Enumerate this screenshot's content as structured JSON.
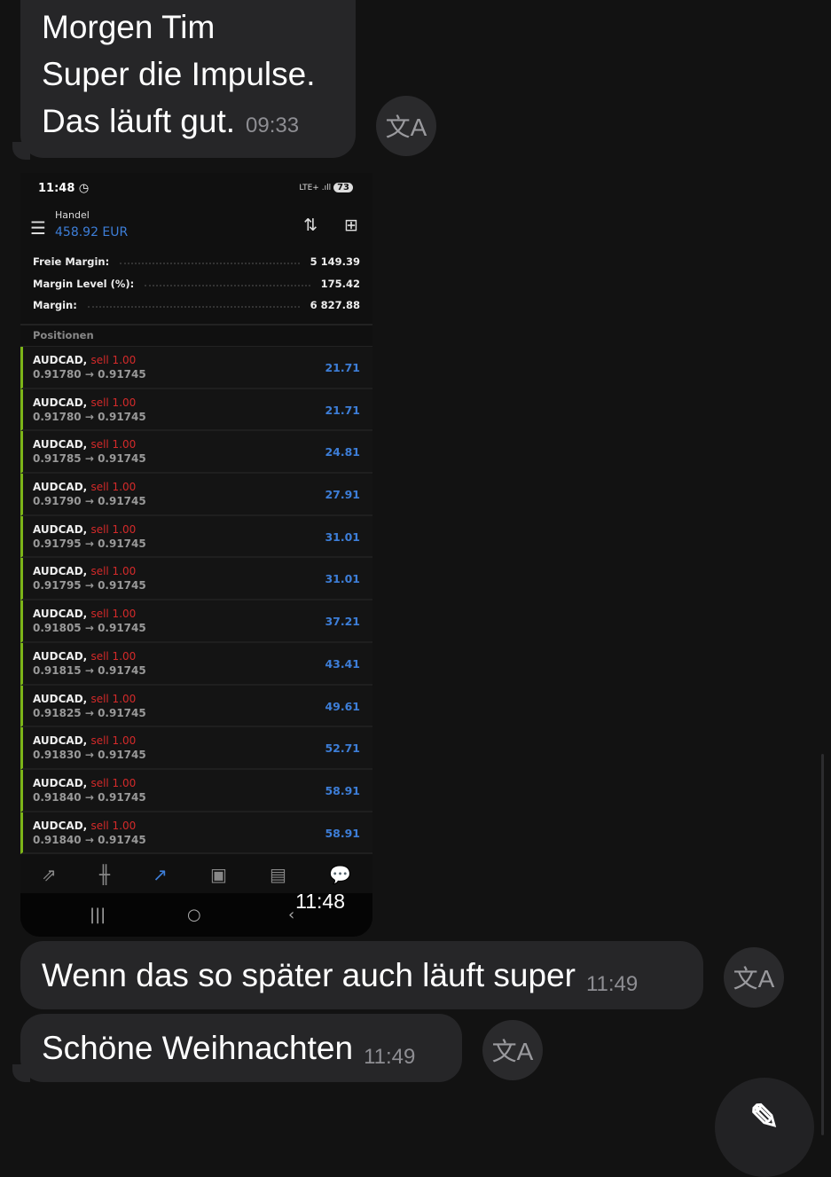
{
  "messages": [
    {
      "lines": [
        "Morgen Tim",
        "Super die Impulse.",
        "Das läuft gut."
      ],
      "time": "09:33"
    },
    {
      "text": "Wenn das so später auch läuft super",
      "time": "11:49"
    },
    {
      "text": "Schöne Weihnachten",
      "time": "11:49"
    }
  ],
  "icons": {
    "translate": "translate-icon",
    "fab": "compose-icon"
  },
  "screenshot": {
    "status_time": "11:48",
    "network": "LTE+ .ıll",
    "battery": "73",
    "header_label": "Handel",
    "balance": "458.92 EUR",
    "stats": [
      {
        "label": "Freie Margin:",
        "value": "5 149.39"
      },
      {
        "label": "Margin Level (%):",
        "value": "175.42"
      },
      {
        "label": "Margin:",
        "value": "6 827.88"
      }
    ],
    "positions_title": "Positionen",
    "positions": [
      {
        "symbol": "AUDCAD,",
        "side": "sell 1.00",
        "prices": "0.91780 → 0.91745",
        "profit": "21.71"
      },
      {
        "symbol": "AUDCAD,",
        "side": "sell 1.00",
        "prices": "0.91780 → 0.91745",
        "profit": "21.71"
      },
      {
        "symbol": "AUDCAD,",
        "side": "sell 1.00",
        "prices": "0.91785 → 0.91745",
        "profit": "24.81"
      },
      {
        "symbol": "AUDCAD,",
        "side": "sell 1.00",
        "prices": "0.91790 → 0.91745",
        "profit": "27.91"
      },
      {
        "symbol": "AUDCAD,",
        "side": "sell 1.00",
        "prices": "0.91795 → 0.91745",
        "profit": "31.01"
      },
      {
        "symbol": "AUDCAD,",
        "side": "sell 1.00",
        "prices": "0.91795 → 0.91745",
        "profit": "31.01"
      },
      {
        "symbol": "AUDCAD,",
        "side": "sell 1.00",
        "prices": "0.91805 → 0.91745",
        "profit": "37.21"
      },
      {
        "symbol": "AUDCAD,",
        "side": "sell 1.00",
        "prices": "0.91815 → 0.91745",
        "profit": "43.41"
      },
      {
        "symbol": "AUDCAD,",
        "side": "sell 1.00",
        "prices": "0.91825 → 0.91745",
        "profit": "49.61"
      },
      {
        "symbol": "AUDCAD,",
        "side": "sell 1.00",
        "prices": "0.91830 → 0.91745",
        "profit": "52.71"
      },
      {
        "symbol": "AUDCAD,",
        "side": "sell 1.00",
        "prices": "0.91840 → 0.91745",
        "profit": "58.91"
      },
      {
        "symbol": "AUDCAD,",
        "side": "sell 1.00",
        "prices": "0.91840 → 0.91745",
        "profit": "58.91"
      }
    ],
    "image_time": "11:48"
  },
  "colors": {
    "profit": "#3d7ed8",
    "sell": "#d42a2a",
    "position_bar": "#7cb518",
    "bubble": "#262628",
    "background": "#121212"
  }
}
